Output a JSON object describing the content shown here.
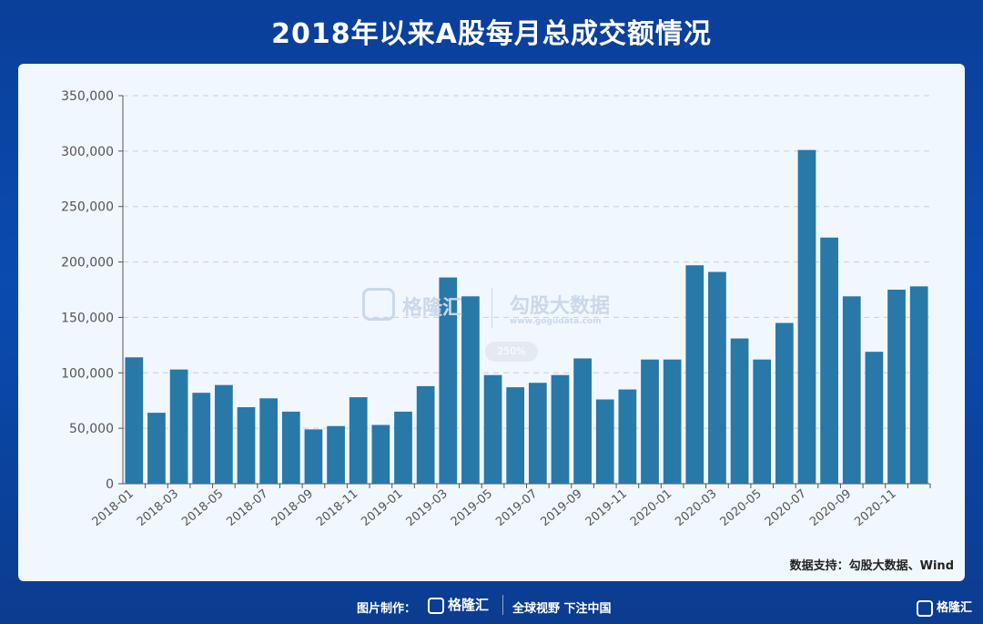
{
  "header": {
    "title": "2018年以来A股每月总成交额情况"
  },
  "source_note": "数据支持：勾股大数据、Wind",
  "watermark": {
    "name": "格隆汇",
    "brand": "勾股大数据",
    "url": "www.gogudata.com",
    "zoom": "250%"
  },
  "footer": {
    "made_by": "图片制作：",
    "logo": "格隆汇",
    "slogan": "全球视野 下注中国",
    "corner_logo": "格隆汇"
  },
  "colors": {
    "bar": "#2878a8",
    "background": "#f1f7fe",
    "header_bg": "#0a4bb0"
  },
  "chart_data": {
    "type": "bar",
    "title": "2018年以来A股每月总成交额情况",
    "xlabel": "",
    "ylabel": "",
    "ylim": [
      0,
      350000
    ],
    "yticks": [
      0,
      50000,
      100000,
      150000,
      200000,
      250000,
      300000,
      350000
    ],
    "ytick_labels": [
      "0",
      "50,000",
      "100,000",
      "150,000",
      "200,000",
      "250,000",
      "300,000",
      "350,000"
    ],
    "grid": "horizontal dashed",
    "categories": [
      "2018-01",
      "2018-02",
      "2018-03",
      "2018-04",
      "2018-05",
      "2018-06",
      "2018-07",
      "2018-08",
      "2018-09",
      "2018-10",
      "2018-11",
      "2018-12",
      "2019-01",
      "2019-02",
      "2019-03",
      "2019-04",
      "2019-05",
      "2019-06",
      "2019-07",
      "2019-08",
      "2019-09",
      "2019-10",
      "2019-11",
      "2019-12",
      "2020-01",
      "2020-02",
      "2020-03",
      "2020-04",
      "2020-05",
      "2020-06",
      "2020-07",
      "2020-08",
      "2020-09",
      "2020-10",
      "2020-11",
      "2020-12"
    ],
    "xtick_labels": [
      "2018-01",
      "2018-03",
      "2018-05",
      "2018-07",
      "2018-09",
      "2018-11",
      "2019-01",
      "2019-03",
      "2019-05",
      "2019-07",
      "2019-09",
      "2019-11",
      "2020-01",
      "2020-03",
      "2020-05",
      "2020-07",
      "2020-09",
      "2020-11"
    ],
    "values": [
      114000,
      64000,
      103000,
      82000,
      89000,
      69000,
      77000,
      65000,
      49000,
      52000,
      78000,
      53000,
      65000,
      88000,
      186000,
      169000,
      98000,
      87000,
      91000,
      98000,
      113000,
      76000,
      85000,
      112000,
      112000,
      197000,
      191000,
      131000,
      112000,
      145000,
      301000,
      222000,
      169000,
      119000,
      175000,
      178000
    ]
  }
}
